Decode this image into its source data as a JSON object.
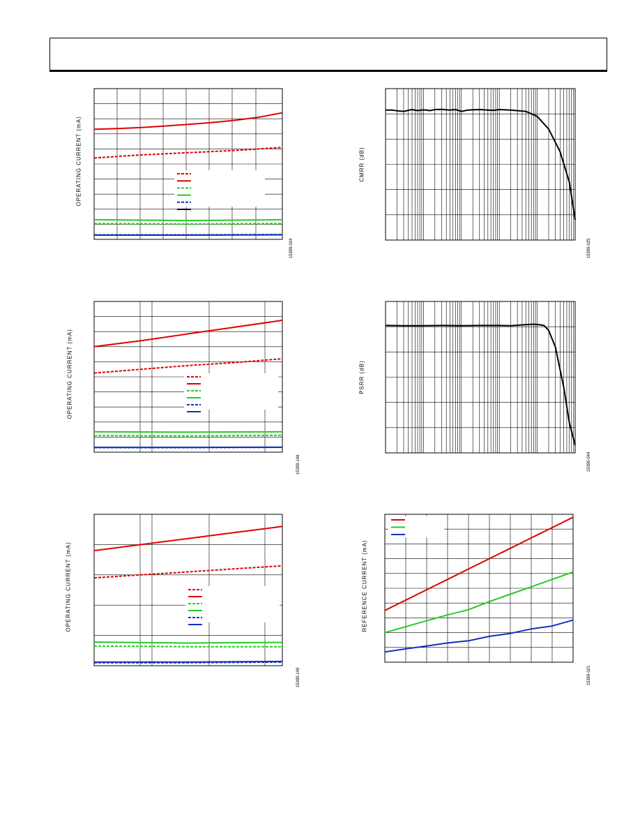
{
  "page": {
    "header": ""
  },
  "chart_data": [
    {
      "id": "c1",
      "type": "line",
      "plot": "op1",
      "ylabel": "OPERATING CURRENT (mA)",
      "figure_id": "15399-024",
      "grid": true,
      "legend": {
        "placement": "center-right",
        "entries": [
          {
            "color": "#e00000",
            "style": "dashed"
          },
          {
            "color": "#e00000",
            "style": "solid"
          },
          {
            "color": "#22cc22",
            "style": "dashed"
          },
          {
            "color": "#22cc22",
            "style": "solid"
          },
          {
            "color": "#1030c0",
            "style": "dashed"
          },
          {
            "color": "#000000",
            "style": "solid"
          }
        ]
      },
      "xlim": [
        0,
        8
      ],
      "ylim": [
        0,
        10
      ],
      "series": [
        {
          "color": "#e00000",
          "style": "solid",
          "x": [
            0,
            1,
            2,
            3,
            4,
            5,
            6,
            7,
            8
          ],
          "values": [
            7.3,
            7.35,
            7.42,
            7.52,
            7.63,
            7.75,
            7.9,
            8.1,
            8.4
          ]
        },
        {
          "color": "#e00000",
          "style": "dashed",
          "x": [
            0,
            2,
            4,
            6,
            8
          ],
          "values": [
            5.4,
            5.6,
            5.75,
            5.9,
            6.1
          ]
        },
        {
          "color": "#22cc22",
          "style": "solid",
          "x": [
            0,
            4,
            8
          ],
          "values": [
            1.3,
            1.25,
            1.3
          ]
        },
        {
          "color": "#22cc22",
          "style": "dashed",
          "x": [
            0,
            4,
            8
          ],
          "values": [
            1.05,
            1.02,
            1.05
          ]
        },
        {
          "color": "#1030c0",
          "style": "solid",
          "x": [
            0,
            4,
            8
          ],
          "values": [
            0.28,
            0.28,
            0.3
          ]
        },
        {
          "color": "#1030c0",
          "style": "dashed",
          "x": [
            0,
            4,
            8
          ],
          "values": [
            0.3,
            0.3,
            0.32
          ]
        }
      ]
    },
    {
      "id": "c2",
      "type": "line",
      "plot": "cmrr",
      "ylabel": "CMRR (dB)",
      "figure_id": "15399-025",
      "grid": true,
      "xscale": "log",
      "xlim": [
        10,
        1000000
      ],
      "ylim": [
        0,
        6
      ],
      "series": [
        {
          "color": "#000000",
          "style": "solid",
          "x": [
            10,
            15,
            20,
            30,
            50,
            70,
            100,
            150,
            200,
            300,
            500,
            700,
            1000,
            1500,
            2000,
            3000,
            5000,
            7000,
            10000,
            20000,
            50000,
            100000,
            200000,
            400000,
            700000,
            1000000
          ],
          "values": [
            5.15,
            5.15,
            5.12,
            5.1,
            5.17,
            5.13,
            5.16,
            5.13,
            5.17,
            5.18,
            5.15,
            5.17,
            5.1,
            5.15,
            5.16,
            5.17,
            5.15,
            5.14,
            5.17,
            5.15,
            5.1,
            4.9,
            4.4,
            3.5,
            2.3,
            0.8
          ]
        }
      ]
    },
    {
      "id": "c3",
      "type": "line",
      "plot": "op2",
      "ylabel": "OPERATING CURRENT (mA)",
      "figure_id": "15399-148",
      "grid": true,
      "legend": {
        "placement": "center-right",
        "entries": [
          {
            "color": "#e00000",
            "style": "dashed"
          },
          {
            "color": "#e00000",
            "style": "solid"
          },
          {
            "color": "#22cc22",
            "style": "dashed"
          },
          {
            "color": "#22cc22",
            "style": "solid"
          },
          {
            "color": "#1030c0",
            "style": "dashed"
          },
          {
            "color": "#1030c0",
            "style": "solid"
          }
        ]
      },
      "xlim": [
        0,
        10
      ],
      "ylim": [
        0,
        10
      ],
      "series": [
        {
          "color": "#e00000",
          "style": "solid",
          "x": [
            0,
            2.5,
            5,
            7.5,
            10
          ],
          "values": [
            7,
            7.4,
            7.85,
            8.3,
            8.75
          ]
        },
        {
          "color": "#e00000",
          "style": "dashed",
          "x": [
            0,
            2.5,
            5,
            7.5,
            10
          ],
          "values": [
            5.25,
            5.5,
            5.75,
            5.95,
            6.2
          ]
        },
        {
          "color": "#22cc22",
          "style": "solid",
          "x": [
            0,
            5,
            10
          ],
          "values": [
            1.35,
            1.33,
            1.35
          ]
        },
        {
          "color": "#22cc22",
          "style": "dashed",
          "x": [
            0,
            5,
            10
          ],
          "values": [
            1.1,
            1.08,
            1.12
          ]
        },
        {
          "color": "#1030c0",
          "style": "solid",
          "x": [
            0,
            5,
            10
          ],
          "values": [
            0.32,
            0.32,
            0.33
          ]
        },
        {
          "color": "#1030c0",
          "style": "dashed",
          "x": [
            0,
            5,
            10
          ],
          "values": [
            0.3,
            0.3,
            0.32
          ]
        }
      ]
    },
    {
      "id": "c4",
      "type": "line",
      "plot": "psrr",
      "ylabel": "PSRR (dB)",
      "figure_id": "15399-044",
      "grid": true,
      "xscale": "log",
      "xlim": [
        10,
        1000000
      ],
      "ylim": [
        0,
        6
      ],
      "series": [
        {
          "color": "#000000",
          "style": "solid",
          "x": [
            10,
            30,
            100,
            300,
            1000,
            3000,
            10000,
            20000,
            50000,
            80000,
            110000,
            150000,
            200000,
            300000,
            500000,
            700000,
            1000000
          ],
          "values": [
            5.05,
            5.04,
            5.04,
            5.05,
            5.04,
            5.05,
            5.05,
            5.04,
            5.08,
            5.1,
            5.08,
            5.05,
            4.85,
            4.2,
            2.6,
            1.2,
            0.3
          ]
        }
      ]
    },
    {
      "id": "c5",
      "type": "line",
      "plot": "op3",
      "ylabel": "OPERATING CURRENT (mA)",
      "figure_id": "15399-149",
      "grid": true,
      "legend": {
        "placement": "center-right",
        "entries": [
          {
            "color": "#e00000",
            "style": "dashed"
          },
          {
            "color": "#e00000",
            "style": "solid"
          },
          {
            "color": "#22cc22",
            "style": "dashed"
          },
          {
            "color": "#22cc22",
            "style": "solid"
          },
          {
            "color": "#1030c0",
            "style": "dashed"
          },
          {
            "color": "#1030c0",
            "style": "solid"
          }
        ]
      },
      "xlim": [
        0,
        10
      ],
      "ylim": [
        0,
        5
      ],
      "series": [
        {
          "color": "#e00000",
          "style": "solid",
          "x": [
            0,
            2.5,
            5,
            7.5,
            10
          ],
          "values": [
            3.8,
            4.0,
            4.2,
            4.4,
            4.6
          ]
        },
        {
          "color": "#e00000",
          "style": "dashed",
          "x": [
            0,
            2.5,
            5,
            7.5,
            10
          ],
          "values": [
            2.9,
            3.0,
            3.1,
            3.2,
            3.3
          ]
        },
        {
          "color": "#22cc22",
          "style": "solid",
          "x": [
            0,
            5,
            10
          ],
          "values": [
            0.78,
            0.75,
            0.77
          ]
        },
        {
          "color": "#22cc22",
          "style": "dashed",
          "x": [
            0,
            5,
            10
          ],
          "values": [
            0.65,
            0.63,
            0.63
          ]
        },
        {
          "color": "#1030c0",
          "style": "solid",
          "x": [
            0,
            5,
            10
          ],
          "values": [
            0.12,
            0.12,
            0.14
          ]
        },
        {
          "color": "#1030c0",
          "style": "dashed",
          "x": [
            0,
            5,
            10
          ],
          "values": [
            0.1,
            0.1,
            0.12
          ]
        }
      ]
    },
    {
      "id": "c6",
      "type": "line",
      "plot": "ref",
      "ylabel": "REFERENCE CURRENT (mA)",
      "figure_id": "15399-021",
      "grid": true,
      "legend": {
        "placement": "top-left",
        "entries": [
          {
            "color": "#e00000",
            "style": "solid"
          },
          {
            "color": "#22cc22",
            "style": "solid"
          },
          {
            "color": "#1030c0",
            "style": "solid"
          }
        ]
      },
      "xlim": [
        0,
        9
      ],
      "ylim": [
        0,
        10
      ],
      "series": [
        {
          "color": "#e00000",
          "style": "solid",
          "x": [
            0,
            1,
            2,
            3,
            4,
            5,
            6,
            7,
            8,
            9
          ],
          "values": [
            3.5,
            4.2,
            4.9,
            5.6,
            6.3,
            7.0,
            7.7,
            8.4,
            9.1,
            9.8
          ]
        },
        {
          "color": "#22cc22",
          "style": "solid",
          "x": [
            0,
            1,
            2,
            3,
            4,
            5,
            6,
            7,
            8,
            9
          ],
          "values": [
            2.0,
            2.4,
            2.8,
            3.2,
            3.55,
            4.1,
            4.6,
            5.1,
            5.6,
            6.1
          ]
        },
        {
          "color": "#1030c0",
          "style": "solid",
          "x": [
            0,
            1,
            2,
            3,
            4,
            5,
            6,
            7,
            8,
            9
          ],
          "values": [
            0.7,
            0.9,
            1.1,
            1.3,
            1.45,
            1.75,
            1.95,
            2.25,
            2.45,
            2.85
          ]
        }
      ]
    }
  ]
}
